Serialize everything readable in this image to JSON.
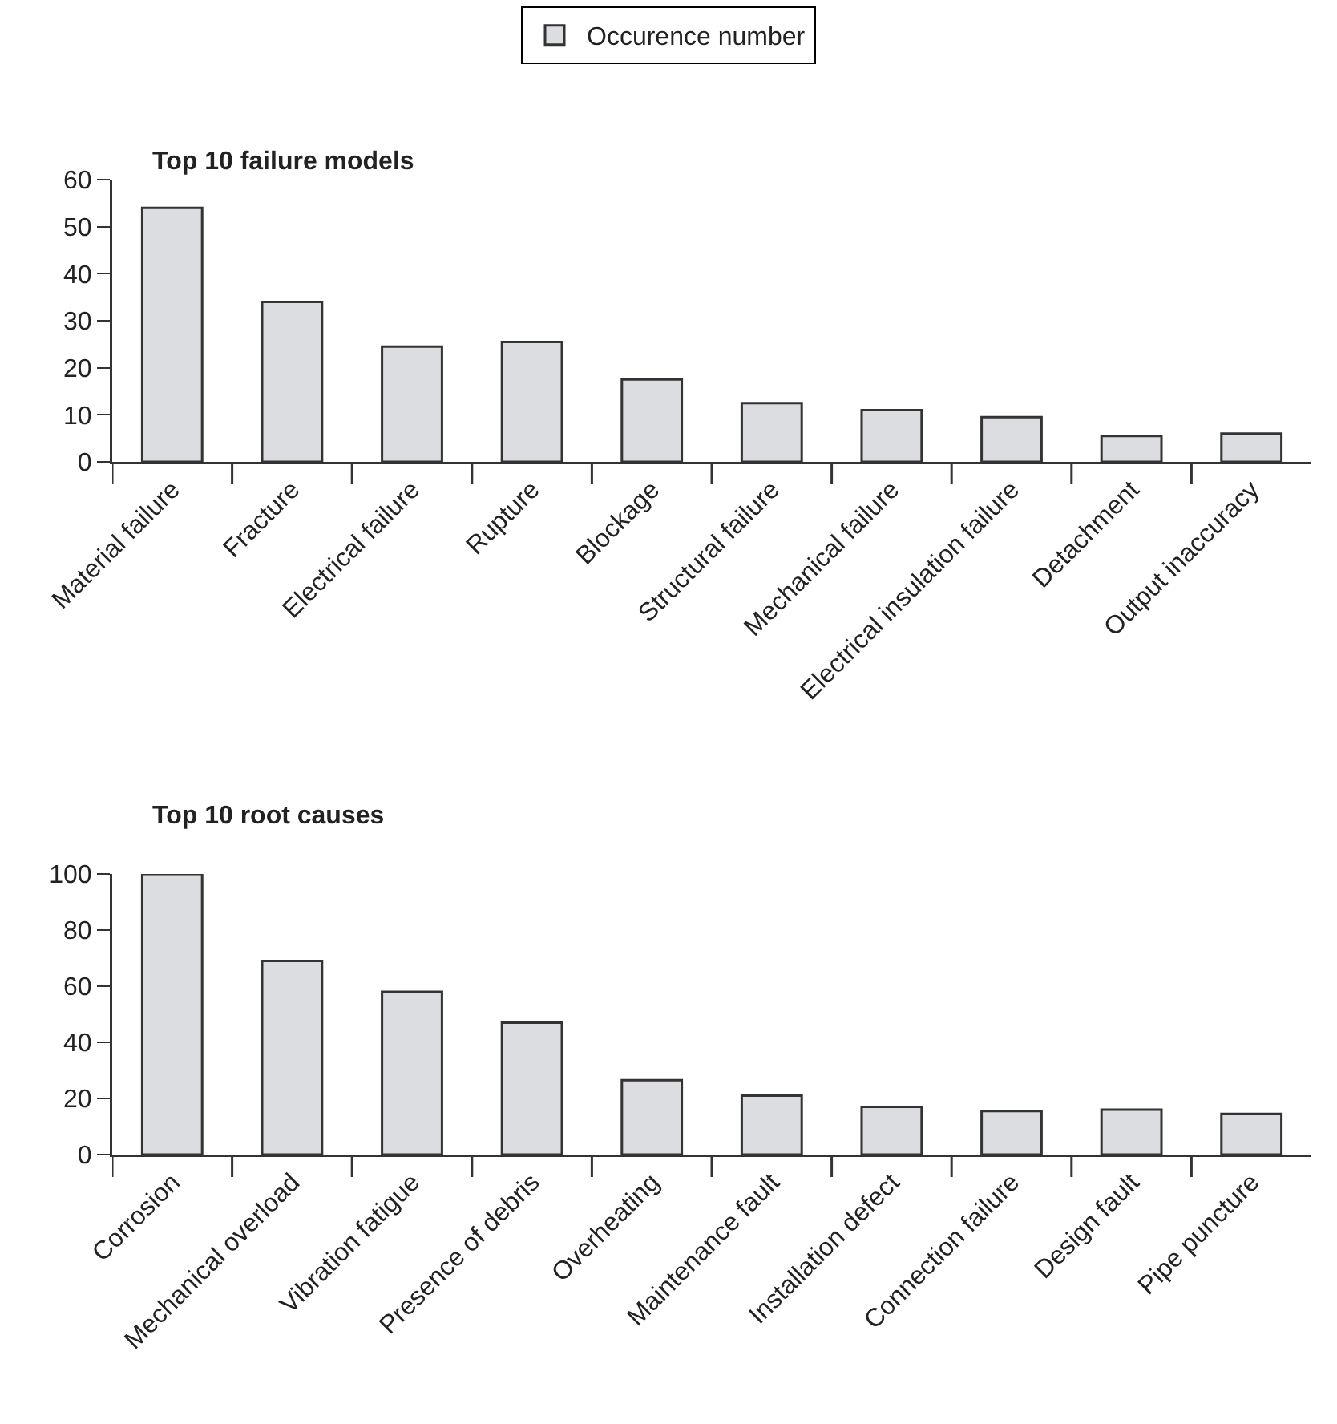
{
  "chart_data": [
    {
      "type": "bar",
      "title": "Top 10 failure models",
      "categories": [
        "Material failure",
        "Fracture",
        "Electrical failure",
        "Rupture",
        "Blockage",
        "Structural failure",
        "Mechanical failure",
        "Electrical insulation failure",
        "Detachment",
        "Output inaccuracy"
      ],
      "series": [
        {
          "name": "Occurence number",
          "color": "#dcdde0",
          "values": [
            54,
            34,
            24.5,
            25.5,
            17.5,
            12.5,
            11,
            9.5,
            5.5,
            6
          ]
        }
      ],
      "ylim": [
        0,
        60
      ],
      "yticks": [
        0,
        10,
        20,
        30,
        40,
        50,
        60
      ],
      "grid": false,
      "legend": "top"
    },
    {
      "type": "bar",
      "title": "Top 10 root causes",
      "categories": [
        "Corrosion",
        "Mechanical overload",
        "Vibration fatigue",
        "Presence of debris",
        "Overheating",
        "Maintenance fault",
        "Installation defect",
        "Connection failure",
        "Design fault",
        "Pipe puncture"
      ],
      "series": [
        {
          "color": "#dcdde0",
          "values": [
            100,
            69,
            58,
            47,
            26.5,
            21,
            17,
            15.5,
            16,
            14.5
          ]
        }
      ],
      "ylim": [
        0,
        100
      ],
      "yticks": [
        0,
        20,
        40,
        60,
        80,
        100
      ],
      "grid": false
    }
  ]
}
